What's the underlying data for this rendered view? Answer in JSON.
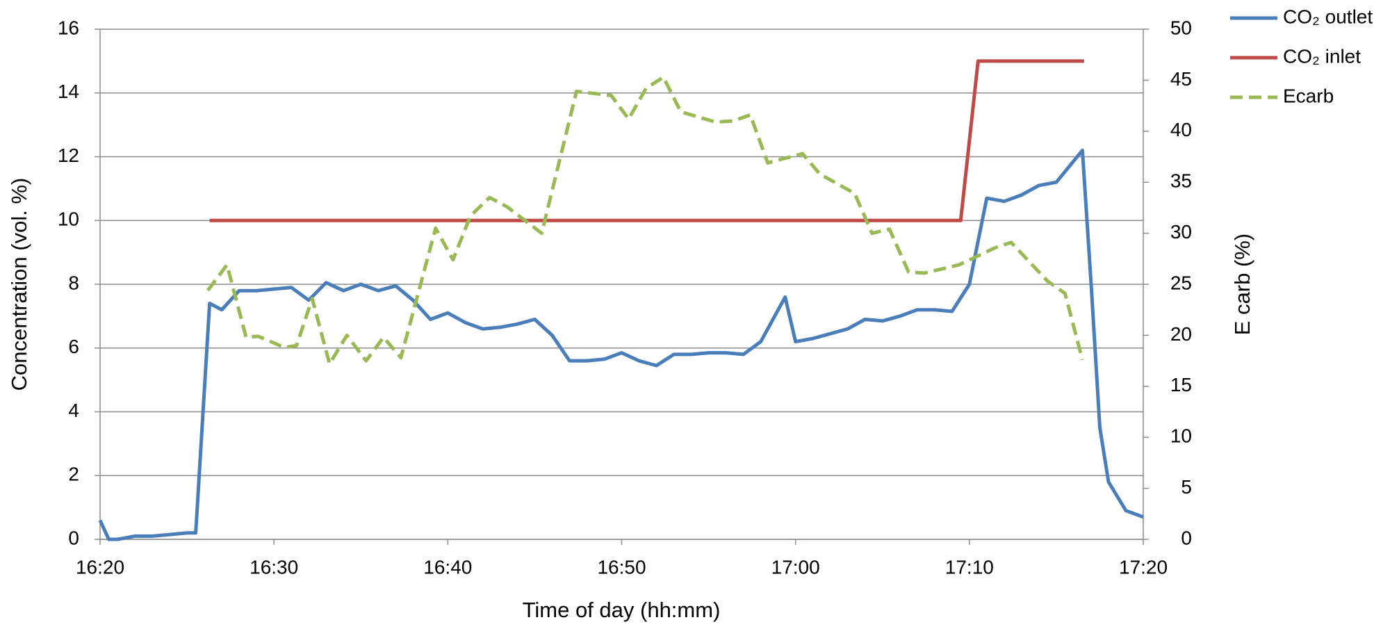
{
  "chart_data": {
    "type": "line",
    "xlabel": "Time of day  (hh:mm)",
    "ylabel": "Concentration (vol. %)",
    "y2label": "E carb (%)",
    "xlim": [
      980,
      1040
    ],
    "xticks": [
      {
        "value": 980,
        "label": "16:20"
      },
      {
        "value": 990,
        "label": "16:30"
      },
      {
        "value": 1000,
        "label": "16:40"
      },
      {
        "value": 1010,
        "label": "16:50"
      },
      {
        "value": 1020,
        "label": "17:00"
      },
      {
        "value": 1030,
        "label": "17:10"
      },
      {
        "value": 1040,
        "label": "17:20"
      }
    ],
    "ylim": [
      0,
      16
    ],
    "yticks": [
      0,
      2,
      4,
      6,
      8,
      10,
      12,
      14,
      16
    ],
    "y2lim": [
      0,
      50
    ],
    "y2ticks": [
      0,
      5,
      10,
      15,
      20,
      25,
      30,
      35,
      40,
      45,
      50
    ],
    "grid": true,
    "legend": "right",
    "series": [
      {
        "name": "CO₂ outlet",
        "color": "#4a7ebb",
        "style": "solid",
        "x": [
          980,
          980.5,
          981,
          982,
          983,
          984,
          985,
          985.5,
          986.3,
          987,
          988,
          989,
          990,
          991,
          992,
          993,
          994,
          995,
          996,
          997,
          998,
          999,
          1000,
          1001,
          1002,
          1003,
          1004,
          1005,
          1006,
          1007,
          1008,
          1009,
          1010,
          1011,
          1012,
          1013,
          1014,
          1015,
          1016,
          1017,
          1018,
          1019.4,
          1020,
          1021,
          1022,
          1023,
          1024,
          1025,
          1026,
          1027,
          1028,
          1029,
          1030,
          1031,
          1032,
          1033,
          1034,
          1035,
          1036.5,
          1037,
          1037.5,
          1038,
          1039,
          1040
        ],
        "values": [
          0.6,
          0,
          0,
          0.1,
          0.1,
          0.15,
          0.2,
          0.2,
          7.4,
          7.2,
          7.8,
          7.8,
          7.85,
          7.9,
          7.5,
          8.05,
          7.8,
          8.0,
          7.8,
          7.95,
          7.5,
          6.9,
          7.1,
          6.8,
          6.6,
          6.65,
          6.75,
          6.9,
          6.4,
          5.6,
          5.6,
          5.65,
          5.85,
          5.6,
          5.45,
          5.8,
          5.8,
          5.85,
          5.85,
          5.8,
          6.2,
          7.6,
          6.2,
          6.3,
          6.45,
          6.6,
          6.9,
          6.85,
          7.0,
          7.2,
          7.2,
          7.15,
          8.0,
          10.7,
          10.6,
          10.8,
          11.1,
          11.2,
          12.2,
          8.0,
          3.5,
          1.8,
          0.9,
          0.7
        ]
      },
      {
        "name": "CO₂ inlet",
        "color": "#be4b48",
        "style": "solid",
        "x": [
          986.3,
          1029.5,
          1030.5,
          1036.6
        ],
        "values": [
          10,
          10,
          15,
          15
        ]
      },
      {
        "name": "Ecarb",
        "color": "#98b954",
        "style": "dashed",
        "axis": "y2",
        "x": [
          986.2,
          987.3,
          988.4,
          989.1,
          990.6,
          991.3,
          992.2,
          993.2,
          994.2,
          995.3,
          996.3,
          997.3,
          999.3,
          1000.3,
          1001.3,
          1002.4,
          1003.4,
          1005.4,
          1007.4,
          1009.4,
          1010.4,
          1011.4,
          1012.4,
          1013.4,
          1015.4,
          1016.4,
          1017.4,
          1018.4,
          1020.4,
          1021.4,
          1023.4,
          1024.4,
          1025.4,
          1026.5,
          1027.4,
          1029.4,
          1031.5,
          1032.4,
          1034.5,
          1035.5,
          1036.5
        ],
        "values": [
          24.4,
          26.9,
          19.8,
          19.9,
          18.8,
          19.0,
          23.6,
          17.2,
          20.0,
          17.5,
          19.8,
          17.8,
          30.5,
          27.4,
          31.7,
          33.5,
          32.6,
          30.0,
          43.9,
          43.5,
          41.2,
          44.2,
          45.3,
          41.9,
          40.9,
          41.0,
          41.6,
          36.9,
          37.8,
          35.8,
          33.9,
          30.0,
          30.4,
          26.2,
          26.1,
          26.9,
          28.6,
          29.1,
          25.3,
          24.1,
          17.6
        ]
      }
    ]
  }
}
